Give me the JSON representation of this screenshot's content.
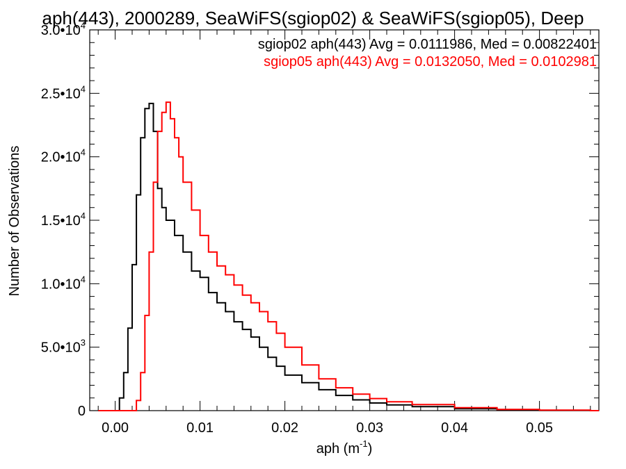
{
  "chart_data": {
    "type": "line",
    "title": "aph(443), 2000289, SeaWiFS(sgiop02) & SeaWiFS(sgiop05), Deep",
    "xlabel": "aph (m⁻¹)",
    "ylabel": "Number of Observations",
    "xlim": [
      -0.003,
      0.057
    ],
    "ylim": [
      0,
      30000
    ],
    "x_ticks": [
      {
        "value": 0.0,
        "label": "0.00"
      },
      {
        "value": 0.01,
        "label": "0.01"
      },
      {
        "value": 0.02,
        "label": "0.02"
      },
      {
        "value": 0.03,
        "label": "0.03"
      },
      {
        "value": 0.04,
        "label": "0.04"
      },
      {
        "value": 0.05,
        "label": "0.05"
      }
    ],
    "y_ticks": [
      {
        "value": 0,
        "mant": "0",
        "exp": ""
      },
      {
        "value": 5000,
        "mant": "5.0•10",
        "exp": "3"
      },
      {
        "value": 10000,
        "mant": "1.0•10",
        "exp": "4"
      },
      {
        "value": 15000,
        "mant": "1.5•10",
        "exp": "4"
      },
      {
        "value": 20000,
        "mant": "2.0•10",
        "exp": "4"
      },
      {
        "value": 25000,
        "mant": "2.5•10",
        "exp": "4"
      },
      {
        "value": 30000,
        "mant": "3.0•10",
        "exp": "4"
      }
    ],
    "grid": false,
    "legend_position": "top-right",
    "series": [
      {
        "name": "sgiop02 aph(443) Avg = 0.0111986, Med = 0.00822401",
        "color": "#000000",
        "style": "step",
        "x": [
          -0.002,
          -0.0005,
          0.0005,
          0.001,
          0.0015,
          0.002,
          0.0025,
          0.003,
          0.0035,
          0.004,
          0.0045,
          0.005,
          0.0055,
          0.006,
          0.007,
          0.008,
          0.009,
          0.01,
          0.011,
          0.012,
          0.013,
          0.014,
          0.015,
          0.016,
          0.017,
          0.018,
          0.019,
          0.02,
          0.022,
          0.024,
          0.026,
          0.028,
          0.03,
          0.032,
          0.035,
          0.04,
          0.045,
          0.05,
          0.056
        ],
        "y": [
          0,
          0,
          1000,
          3000,
          6500,
          11500,
          17000,
          21500,
          23800,
          24200,
          22000,
          17500,
          16000,
          15000,
          13800,
          12500,
          11000,
          10500,
          9300,
          8500,
          7800,
          7000,
          6400,
          5800,
          5000,
          4200,
          3500,
          2800,
          2200,
          1650,
          1200,
          850,
          600,
          450,
          320,
          150,
          60,
          20,
          0
        ]
      },
      {
        "name": "sgiop05 aph(443) Avg = 0.0132050, Med = 0.0102981",
        "color": "#ff0000",
        "style": "step",
        "x": [
          -0.002,
          0.002,
          0.0025,
          0.003,
          0.0035,
          0.004,
          0.0045,
          0.005,
          0.0055,
          0.006,
          0.0065,
          0.007,
          0.0075,
          0.008,
          0.009,
          0.01,
          0.011,
          0.012,
          0.013,
          0.014,
          0.015,
          0.016,
          0.017,
          0.018,
          0.019,
          0.02,
          0.022,
          0.024,
          0.026,
          0.028,
          0.03,
          0.032,
          0.035,
          0.04,
          0.045,
          0.05,
          0.056
        ],
        "y": [
          0,
          0,
          800,
          3000,
          7500,
          12500,
          18000,
          22000,
          23500,
          24300,
          23000,
          21500,
          20000,
          18000,
          15800,
          13800,
          12500,
          11400,
          10700,
          9900,
          9100,
          8500,
          7800,
          7000,
          6100,
          5000,
          3600,
          2500,
          1800,
          1300,
          950,
          700,
          480,
          230,
          100,
          40,
          0
        ]
      }
    ]
  }
}
